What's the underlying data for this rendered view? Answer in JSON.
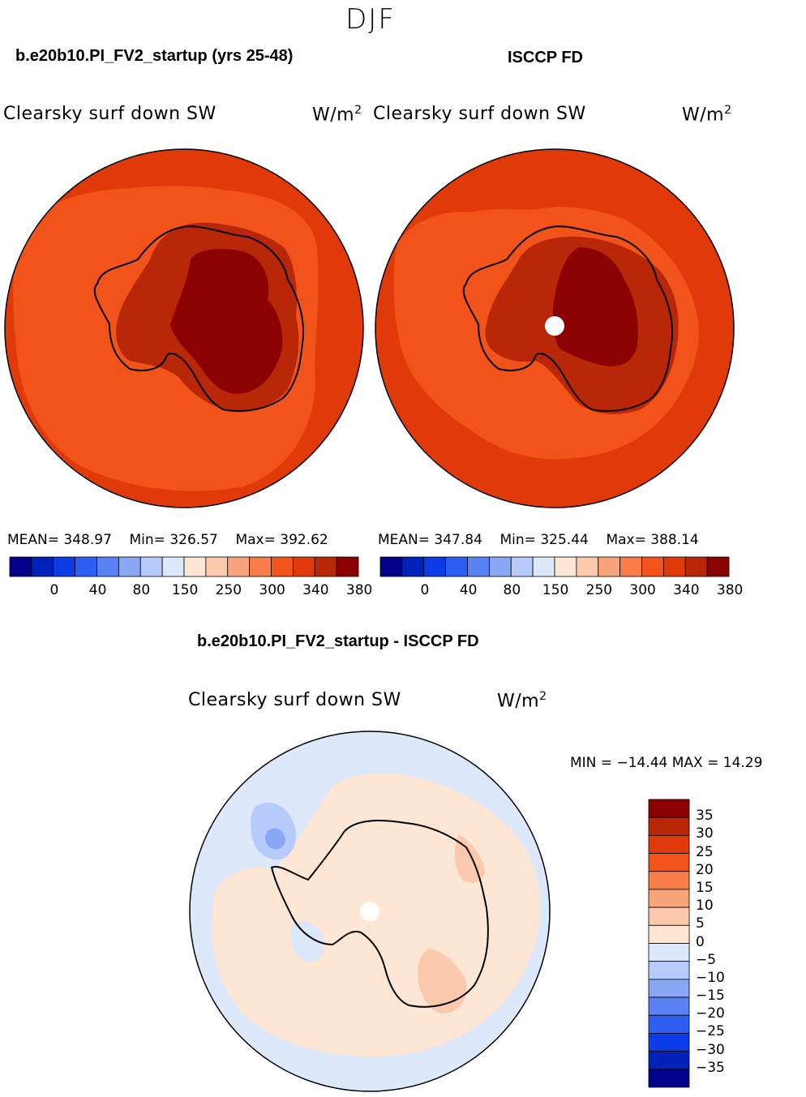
{
  "season": "DJF",
  "panel_left": {
    "case_title": "b.e20b10.PI_FV2_startup (yrs 25-48)",
    "variable": "Clearsky surf down SW",
    "units_base": "W/m",
    "units_exp": "2",
    "mean_label": "MEAN=",
    "mean": "348.97",
    "min_label": "Min=",
    "min": "326.57",
    "max_label": "Max=",
    "max": "392.62"
  },
  "panel_right": {
    "case_title": "ISCCP FD",
    "variable": "Clearsky surf down SW",
    "units_base": "W/m",
    "units_exp": "2",
    "mean_label": "MEAN=",
    "mean": "347.84",
    "min_label": "Min=",
    "min": "325.44",
    "max_label": "Max=",
    "max": "388.14"
  },
  "panel_diff": {
    "title": "b.e20b10.PI_FV2_startup - ISCCP FD",
    "variable": "Clearsky surf down SW",
    "units_base": "W/m",
    "units_exp": "2",
    "minmax": "MIN = −14.44 MAX =  14.29"
  },
  "chart_data": [
    {
      "type": "heatmap",
      "projection": "south-polar-stereographic",
      "title": "b.e20b10.PI_FV2_startup (yrs 25-48)",
      "variable": "Clearsky surf down SW",
      "units": "W/m2",
      "mean": 348.97,
      "min": 326.57,
      "max": 392.62,
      "colorbar_ticks": [
        "0",
        "40",
        "80",
        "150",
        "250",
        "300",
        "340",
        "380"
      ],
      "colorbar_colors": [
        "#00008b",
        "#0022b8",
        "#0b3ce6",
        "#2d5ff5",
        "#5a82f5",
        "#8aa7f5",
        "#b7cbfa",
        "#dde9fb",
        "#fde6d4",
        "#fbc9ad",
        "#f9a57c",
        "#f87d48",
        "#f2531a",
        "#e03a0a",
        "#b82808",
        "#8b0000"
      ]
    },
    {
      "type": "heatmap",
      "projection": "south-polar-stereographic",
      "title": "ISCCP FD",
      "variable": "Clearsky surf down SW",
      "units": "W/m2",
      "mean": 347.84,
      "min": 325.44,
      "max": 388.14,
      "colorbar_ticks": [
        "0",
        "40",
        "80",
        "150",
        "250",
        "300",
        "340",
        "380"
      ],
      "colorbar_colors": [
        "#00008b",
        "#0022b8",
        "#0b3ce6",
        "#2d5ff5",
        "#5a82f5",
        "#8aa7f5",
        "#b7cbfa",
        "#dde9fb",
        "#fde6d4",
        "#fbc9ad",
        "#f9a57c",
        "#f87d48",
        "#f2531a",
        "#e03a0a",
        "#b82808",
        "#8b0000"
      ]
    },
    {
      "type": "heatmap",
      "projection": "south-polar-stereographic",
      "title": "b.e20b10.PI_FV2_startup - ISCCP FD",
      "variable": "Clearsky surf down SW",
      "units": "W/m2",
      "min": -14.44,
      "max": 14.29,
      "colorbar_ticks": [
        "35",
        "30",
        "25",
        "20",
        "15",
        "10",
        "5",
        "0",
        "−5",
        "−10",
        "−15",
        "−20",
        "−25",
        "−30",
        "−35"
      ],
      "colorbar_colors": [
        "#8b0000",
        "#b82808",
        "#e03a0a",
        "#f2531a",
        "#f87d48",
        "#f9a57c",
        "#fbc9ad",
        "#fde6d4",
        "#dde9fb",
        "#b7cbfa",
        "#8aa7f5",
        "#5a82f5",
        "#2d5ff5",
        "#0b3ce6",
        "#0022b8",
        "#00008b"
      ]
    }
  ],
  "colors": {
    "outer_red": "#e03a0a",
    "ring_orange": "#f2531a",
    "inner_dark": "#b82808",
    "core_darkest": "#8b0000",
    "diff_pale_orange": "#fde6d4",
    "diff_pale_blue": "#dde9fb"
  }
}
